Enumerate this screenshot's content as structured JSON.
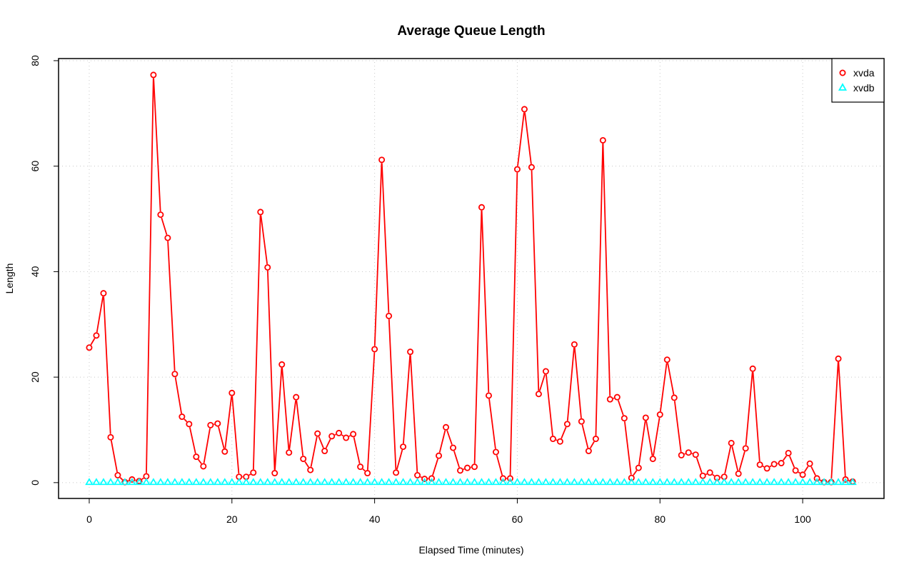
{
  "chart_data": {
    "type": "line",
    "title": "Average Queue Length",
    "xlabel": "Elapsed Time (minutes)",
    "ylabel": "Length",
    "xlim": [
      -4.3,
      111.4
    ],
    "ylim": [
      -3,
      80.4
    ],
    "x_ticks": [
      0,
      20,
      40,
      60,
      80,
      100
    ],
    "y_ticks": [
      0,
      20,
      40,
      60,
      80
    ],
    "grid": true,
    "legend_position": "top-right",
    "x": [
      0,
      1,
      2,
      3,
      4,
      5,
      6,
      7,
      8,
      9,
      10,
      11,
      12,
      13,
      14,
      15,
      16,
      17,
      18,
      19,
      20,
      21,
      22,
      23,
      24,
      25,
      26,
      27,
      28,
      29,
      30,
      31,
      32,
      33,
      34,
      35,
      36,
      37,
      38,
      39,
      40,
      41,
      42,
      43,
      44,
      45,
      46,
      47,
      48,
      49,
      50,
      51,
      52,
      53,
      54,
      55,
      56,
      57,
      58,
      59,
      60,
      61,
      62,
      63,
      64,
      65,
      66,
      67,
      68,
      69,
      70,
      71,
      72,
      73,
      74,
      75,
      76,
      77,
      78,
      79,
      80,
      81,
      82,
      83,
      84,
      85,
      86,
      87,
      88,
      89,
      90,
      91,
      92,
      93,
      94,
      95,
      96,
      97,
      98,
      99,
      100,
      101,
      102,
      103,
      104,
      105,
      106,
      107
    ],
    "series": [
      {
        "name": "xvda",
        "color": "#ff0000",
        "marker": "circle",
        "values": [
          25.6,
          27.9,
          35.9,
          8.6,
          1.4,
          0.1,
          0.6,
          0.3,
          1.2,
          77.3,
          50.8,
          46.4,
          20.6,
          12.5,
          11.1,
          4.9,
          3.1,
          10.9,
          11.2,
          5.9,
          17.0,
          1.1,
          1.1,
          1.9,
          51.3,
          40.8,
          1.8,
          22.4,
          5.7,
          16.2,
          4.5,
          2.4,
          9.3,
          6.0,
          8.8,
          9.4,
          8.5,
          9.2,
          3.0,
          1.8,
          25.3,
          61.2,
          31.6,
          1.9,
          6.8,
          24.8,
          1.4,
          0.7,
          0.8,
          5.1,
          10.5,
          6.6,
          2.3,
          2.8,
          3.0,
          52.2,
          16.5,
          5.8,
          0.8,
          0.8,
          59.4,
          70.8,
          59.8,
          16.8,
          21.1,
          8.3,
          7.8,
          11.1,
          26.2,
          11.6,
          6.0,
          8.3,
          64.9,
          15.8,
          16.2,
          12.2,
          0.9,
          2.8,
          12.3,
          4.5,
          12.9,
          23.3,
          16.1,
          5.2,
          5.7,
          5.3,
          1.3,
          1.9,
          0.9,
          1.1,
          7.5,
          1.7,
          6.5,
          21.6,
          3.4,
          2.7,
          3.5,
          3.7,
          5.6,
          2.3,
          1.5,
          3.6,
          0.8,
          0.1,
          0.1,
          23.5,
          0.6,
          0.2
        ]
      },
      {
        "name": "xvdb",
        "color": "#00ffff",
        "marker": "triangle",
        "values": [
          0.1,
          0.1,
          0.1,
          0.1,
          0.1,
          0.1,
          0.1,
          0.1,
          0.1,
          0.1,
          0.1,
          0.1,
          0.1,
          0.1,
          0.1,
          0.1,
          0.1,
          0.1,
          0.1,
          0.1,
          0.1,
          0.1,
          0.1,
          0.1,
          0.1,
          0.1,
          0.1,
          0.1,
          0.1,
          0.1,
          0.1,
          0.1,
          0.1,
          0.1,
          0.1,
          0.1,
          0.1,
          0.1,
          0.1,
          0.1,
          0.1,
          0.1,
          0.1,
          0.1,
          0.1,
          0.1,
          0.1,
          0.1,
          0.1,
          0.1,
          0.1,
          0.1,
          0.1,
          0.1,
          0.1,
          0.1,
          0.1,
          0.1,
          0.1,
          0.1,
          0.1,
          0.1,
          0.1,
          0.1,
          0.1,
          0.1,
          0.1,
          0.1,
          0.1,
          0.1,
          0.1,
          0.1,
          0.1,
          0.1,
          0.1,
          0.1,
          0.1,
          0.1,
          0.1,
          0.1,
          0.1,
          0.1,
          0.1,
          0.1,
          0.1,
          0.1,
          0.1,
          0.1,
          0.1,
          0.1,
          0.1,
          0.1,
          0.1,
          0.1,
          0.1,
          0.1,
          0.1,
          0.1,
          0.1,
          0.1,
          0.1,
          0.1,
          0.1,
          0.1,
          0.1,
          0.1,
          0.1,
          0.1
        ]
      }
    ]
  }
}
